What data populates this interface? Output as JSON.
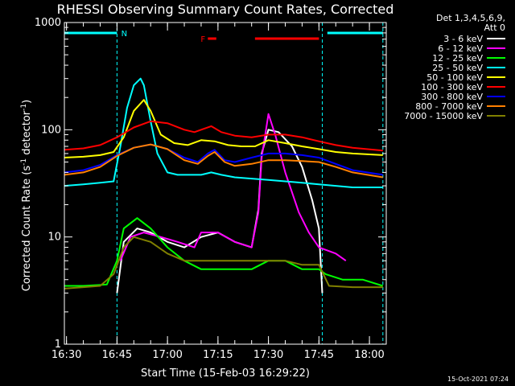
{
  "chart_data": {
    "type": "line",
    "title": "RHESSI Observing Summary Count Rates, Corrected",
    "xlabel": "Start Time (15-Feb-03 16:29:22)",
    "ylabel_main": "Corrected Count Rate (s",
    "ylabel_sup1": "-1",
    "ylabel_mid": " detector",
    "ylabel_sup2": "-1",
    "ylabel_end": ")",
    "y_scale": "log",
    "ylim": [
      1,
      1000
    ],
    "xlim": [
      "16:29:22",
      "18:05:00"
    ],
    "y_ticks": [
      {
        "value": 1,
        "label": "1"
      },
      {
        "value": 10,
        "label": "10"
      },
      {
        "value": 100,
        "label": "100"
      },
      {
        "value": 1000,
        "label": "1000"
      }
    ],
    "x_ticks": [
      {
        "time": "16:30",
        "label": "16:30"
      },
      {
        "time": "16:45",
        "label": "16:45"
      },
      {
        "time": "17:00",
        "label": "17:00"
      },
      {
        "time": "17:15",
        "label": "17:15"
      },
      {
        "time": "17:30",
        "label": "17:30"
      },
      {
        "time": "17:45",
        "label": "17:45"
      },
      {
        "time": "18:00",
        "label": "18:00"
      }
    ],
    "legend_header": [
      "Det 1,3,4,5,6,9,",
      "Att 0"
    ],
    "legend_position": "right",
    "attributes": {
      "N": {
        "label": "N",
        "color": "#00ffff",
        "segments": [
          [
            "16:29:22",
            "16:45:00"
          ],
          [
            "17:47:30",
            "18:04:00"
          ]
        ]
      },
      "F": {
        "label": "F",
        "color": "#ff0000",
        "segments": [
          [
            "17:12:00",
            "17:14:30"
          ],
          [
            "17:26:00",
            "17:45:00"
          ]
        ]
      }
    },
    "night_boundaries": [
      "16:45:00",
      "17:46:00",
      "18:04:00"
    ],
    "series": [
      {
        "name": "3 - 6 keV",
        "color": "#ffffff",
        "points": [
          [
            "16:37",
            0
          ],
          [
            "16:45",
            3
          ],
          [
            "16:47",
            9
          ],
          [
            "16:51",
            12
          ],
          [
            "16:55",
            11
          ],
          [
            "17:00",
            9
          ],
          [
            "17:05",
            8
          ],
          [
            "17:10",
            10
          ],
          [
            "17:15",
            11
          ],
          [
            "17:20",
            9
          ],
          [
            "17:25",
            8
          ],
          [
            "17:27",
            18
          ],
          [
            "17:28",
            60
          ],
          [
            "17:30",
            100
          ],
          [
            "17:33",
            95
          ],
          [
            "17:37",
            70
          ],
          [
            "17:40",
            45
          ],
          [
            "17:43",
            22
          ],
          [
            "17:45",
            12
          ],
          [
            "17:46",
            3
          ],
          [
            "17:47",
            0
          ]
        ]
      },
      {
        "name": "6 - 12 keV",
        "color": "#ff00ff",
        "points": [
          [
            "16:46",
            6
          ],
          [
            "16:49",
            10
          ],
          [
            "16:53",
            11
          ],
          [
            "16:58",
            10
          ],
          [
            "17:03",
            9
          ],
          [
            "17:08",
            8
          ],
          [
            "17:10",
            11
          ],
          [
            "17:15",
            11
          ],
          [
            "17:20",
            9
          ],
          [
            "17:25",
            8
          ],
          [
            "17:27",
            17
          ],
          [
            "17:28",
            55
          ],
          [
            "17:30",
            140
          ],
          [
            "17:32",
            90
          ],
          [
            "17:35",
            40
          ],
          [
            "17:39",
            17
          ],
          [
            "17:42",
            11
          ],
          [
            "17:45",
            8
          ],
          [
            "17:50",
            7
          ],
          [
            "17:53",
            6
          ]
        ]
      },
      {
        "name": "12 - 25 keV",
        "color": "#00ff00",
        "points": [
          [
            "16:29:22",
            3.5
          ],
          [
            "16:35",
            3.5
          ],
          [
            "16:42",
            3.6
          ],
          [
            "16:45",
            6
          ],
          [
            "16:47",
            12
          ],
          [
            "16:51",
            15
          ],
          [
            "16:55",
            12
          ],
          [
            "17:00",
            8
          ],
          [
            "17:05",
            6
          ],
          [
            "17:10",
            5
          ],
          [
            "17:15",
            5
          ],
          [
            "17:20",
            5
          ],
          [
            "17:25",
            5
          ],
          [
            "17:30",
            6
          ],
          [
            "17:35",
            6
          ],
          [
            "17:40",
            5
          ],
          [
            "17:45",
            5
          ],
          [
            "17:47",
            4.5
          ],
          [
            "17:52",
            4
          ],
          [
            "17:58",
            4
          ],
          [
            "18:04",
            3.5
          ]
        ]
      },
      {
        "name": "25 - 50 keV",
        "color": "#00ffff",
        "points": [
          [
            "16:29:22",
            30
          ],
          [
            "16:35",
            31
          ],
          [
            "16:40",
            32
          ],
          [
            "16:44",
            33
          ],
          [
            "16:46",
            70
          ],
          [
            "16:48",
            160
          ],
          [
            "16:50",
            260
          ],
          [
            "16:52",
            300
          ],
          [
            "16:53",
            260
          ],
          [
            "16:55",
            120
          ],
          [
            "16:57",
            60
          ],
          [
            "17:00",
            40
          ],
          [
            "17:03",
            38
          ],
          [
            "17:06",
            38
          ],
          [
            "17:10",
            38
          ],
          [
            "17:13",
            40
          ],
          [
            "17:16",
            38
          ],
          [
            "17:20",
            36
          ],
          [
            "17:25",
            35
          ],
          [
            "17:30",
            34
          ],
          [
            "17:35",
            33
          ],
          [
            "17:40",
            32
          ],
          [
            "17:45",
            31
          ],
          [
            "17:50",
            30
          ],
          [
            "17:55",
            29
          ],
          [
            "18:04",
            29
          ]
        ]
      },
      {
        "name": "50 - 100 keV",
        "color": "#ffff00",
        "points": [
          [
            "16:29:22",
            55
          ],
          [
            "16:35",
            56
          ],
          [
            "16:40",
            58
          ],
          [
            "16:44",
            62
          ],
          [
            "16:47",
            85
          ],
          [
            "16:50",
            150
          ],
          [
            "16:53",
            190
          ],
          [
            "16:55",
            150
          ],
          [
            "16:58",
            90
          ],
          [
            "17:02",
            75
          ],
          [
            "17:06",
            72
          ],
          [
            "17:10",
            80
          ],
          [
            "17:14",
            78
          ],
          [
            "17:18",
            72
          ],
          [
            "17:22",
            70
          ],
          [
            "17:26",
            70
          ],
          [
            "17:30",
            80
          ],
          [
            "17:35",
            75
          ],
          [
            "17:40",
            70
          ],
          [
            "17:45",
            66
          ],
          [
            "17:50",
            62
          ],
          [
            "17:55",
            60
          ],
          [
            "18:04",
            58
          ]
        ]
      },
      {
        "name": "100 - 300 keV",
        "color": "#ff0000",
        "points": [
          [
            "16:29:22",
            65
          ],
          [
            "16:35",
            67
          ],
          [
            "16:40",
            72
          ],
          [
            "16:45",
            85
          ],
          [
            "16:50",
            105
          ],
          [
            "16:55",
            120
          ],
          [
            "17:00",
            115
          ],
          [
            "17:05",
            100
          ],
          [
            "17:08",
            95
          ],
          [
            "17:10",
            100
          ],
          [
            "17:13",
            108
          ],
          [
            "17:16",
            95
          ],
          [
            "17:20",
            88
          ],
          [
            "17:25",
            85
          ],
          [
            "17:30",
            90
          ],
          [
            "17:35",
            90
          ],
          [
            "17:40",
            85
          ],
          [
            "17:45",
            78
          ],
          [
            "17:50",
            72
          ],
          [
            "17:55",
            68
          ],
          [
            "18:04",
            64
          ]
        ]
      },
      {
        "name": "300 - 800 keV",
        "color": "#0000ff",
        "points": [
          [
            "16:29:22",
            40
          ],
          [
            "16:35",
            42
          ],
          [
            "16:40",
            47
          ],
          [
            "16:45",
            58
          ],
          [
            "16:50",
            68
          ],
          [
            "16:55",
            73
          ],
          [
            "17:00",
            66
          ],
          [
            "17:05",
            55
          ],
          [
            "17:09",
            50
          ],
          [
            "17:12",
            60
          ],
          [
            "17:14",
            65
          ],
          [
            "17:17",
            52
          ],
          [
            "17:20",
            50
          ],
          [
            "17:25",
            55
          ],
          [
            "17:30",
            60
          ],
          [
            "17:35",
            60
          ],
          [
            "17:40",
            58
          ],
          [
            "17:45",
            55
          ],
          [
            "17:50",
            48
          ],
          [
            "17:55",
            42
          ],
          [
            "18:04",
            38
          ]
        ]
      },
      {
        "name": "800 - 7000 keV",
        "color": "#ff8000",
        "points": [
          [
            "16:29:22",
            38
          ],
          [
            "16:35",
            40
          ],
          [
            "16:40",
            45
          ],
          [
            "16:45",
            57
          ],
          [
            "16:50",
            68
          ],
          [
            "16:55",
            73
          ],
          [
            "17:00",
            66
          ],
          [
            "17:05",
            52
          ],
          [
            "17:09",
            48
          ],
          [
            "17:12",
            57
          ],
          [
            "17:14",
            62
          ],
          [
            "17:17",
            50
          ],
          [
            "17:20",
            46
          ],
          [
            "17:25",
            48
          ],
          [
            "17:30",
            52
          ],
          [
            "17:35",
            52
          ],
          [
            "17:40",
            51
          ],
          [
            "17:45",
            50
          ],
          [
            "17:50",
            45
          ],
          [
            "17:55",
            40
          ],
          [
            "18:04",
            36
          ]
        ]
      },
      {
        "name": "7000 - 15000 keV",
        "color": "#808000",
        "points": [
          [
            "16:29:22",
            3.3
          ],
          [
            "16:35",
            3.4
          ],
          [
            "16:40",
            3.5
          ],
          [
            "16:44",
            4.5
          ],
          [
            "16:47",
            8
          ],
          [
            "16:50",
            10
          ],
          [
            "16:55",
            9
          ],
          [
            "17:00",
            7
          ],
          [
            "17:05",
            6
          ],
          [
            "17:10",
            6
          ],
          [
            "17:15",
            6
          ],
          [
            "17:20",
            6
          ],
          [
            "17:25",
            6
          ],
          [
            "17:30",
            6
          ],
          [
            "17:35",
            6
          ],
          [
            "17:40",
            5.5
          ],
          [
            "17:45",
            5.5
          ],
          [
            "17:48",
            3.5
          ],
          [
            "17:55",
            3.4
          ],
          [
            "18:04",
            3.4
          ]
        ]
      }
    ]
  },
  "footer": {
    "timestamp": "15-Oct-2021 07:24"
  }
}
